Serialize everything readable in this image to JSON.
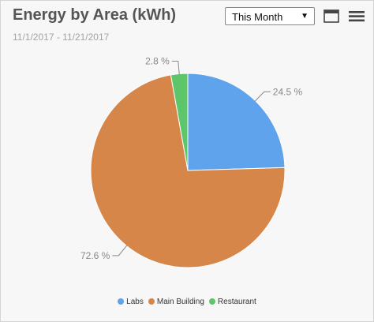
{
  "header": {
    "title": "Energy by Area (kWh)",
    "date_range": "11/1/2017 - 11/21/2017",
    "period_select": {
      "value": "This Month"
    },
    "icons": {
      "window": "window-icon",
      "menu": "hamburger-menu-icon",
      "dropdown": "caret-down-icon"
    }
  },
  "chart_data": {
    "type": "pie",
    "title": "Energy by Area (kWh)",
    "subtitle": "11/1/2017 - 11/21/2017",
    "legend_position": "bottom",
    "slices": [
      {
        "name": "Labs",
        "value": 24.5,
        "label": "24.5 %",
        "color": "#5ea3ec"
      },
      {
        "name": "Main Building",
        "value": 72.6,
        "label": "72.6 %",
        "color": "#d58648"
      },
      {
        "name": "Restaurant",
        "value": 2.8,
        "label": "2.8 %",
        "color": "#5fc56a"
      }
    ]
  },
  "colors": {
    "background": "#f7f7f7",
    "text": "#555555",
    "label": "#888888"
  }
}
